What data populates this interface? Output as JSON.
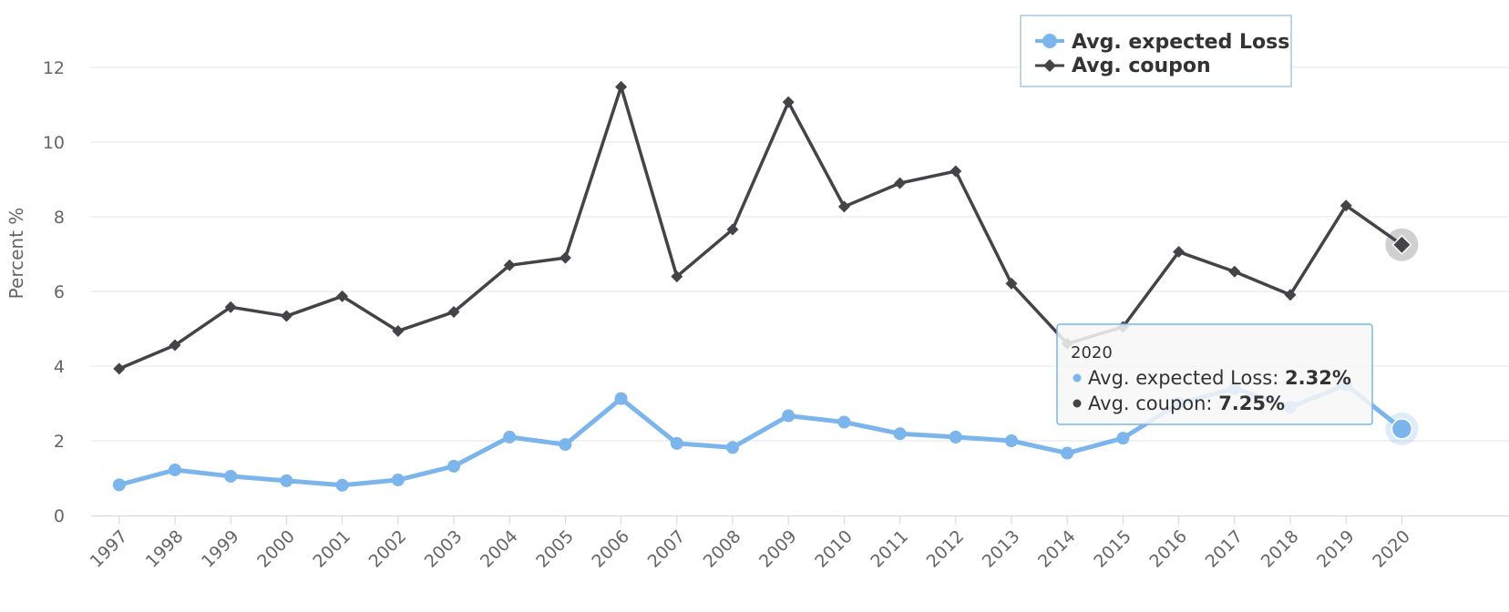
{
  "chart_data": {
    "type": "line",
    "title": "",
    "xlabel": "",
    "ylabel": "Percent %",
    "ylim": [
      0,
      14
    ],
    "yticks": [
      "0",
      "2",
      "4",
      "6",
      "8",
      "10",
      "12",
      "14"
    ],
    "categories": [
      "1997",
      "1998",
      "1999",
      "2000",
      "2001",
      "2002",
      "2003",
      "2004",
      "2005",
      "2006",
      "2007",
      "2008",
      "2009",
      "2010",
      "2011",
      "2012",
      "2013",
      "2014",
      "2015",
      "2016",
      "2017",
      "2018",
      "2019",
      "2020"
    ],
    "grid": true,
    "legend_position": "top-right",
    "series": [
      {
        "name": "Avg. expected Loss",
        "color": "#7cb5ec",
        "marker": "circle",
        "values": [
          0.82,
          1.22,
          1.05,
          0.93,
          0.81,
          0.95,
          1.32,
          2.1,
          1.9,
          3.13,
          1.93,
          1.82,
          2.67,
          2.5,
          2.19,
          2.1,
          2.0,
          1.67,
          2.07,
          3.0,
          3.4,
          2.9,
          3.5,
          2.32
        ]
      },
      {
        "name": "Avg. coupon",
        "color": "#434348",
        "marker": "diamond",
        "values": [
          3.93,
          4.56,
          5.58,
          5.34,
          5.87,
          4.94,
          5.45,
          6.7,
          6.9,
          11.48,
          6.4,
          7.66,
          11.07,
          8.27,
          8.9,
          9.22,
          6.21,
          4.6,
          5.05,
          7.06,
          6.53,
          5.91,
          8.3,
          7.25
        ]
      }
    ]
  },
  "tooltip": {
    "header": "2020",
    "rows": [
      {
        "label": "Avg. expected Loss: ",
        "value": "2.32%",
        "color": "#7cb5ec"
      },
      {
        "label": "Avg. coupon: ",
        "value": "7.25%",
        "color": "#434348"
      }
    ]
  }
}
